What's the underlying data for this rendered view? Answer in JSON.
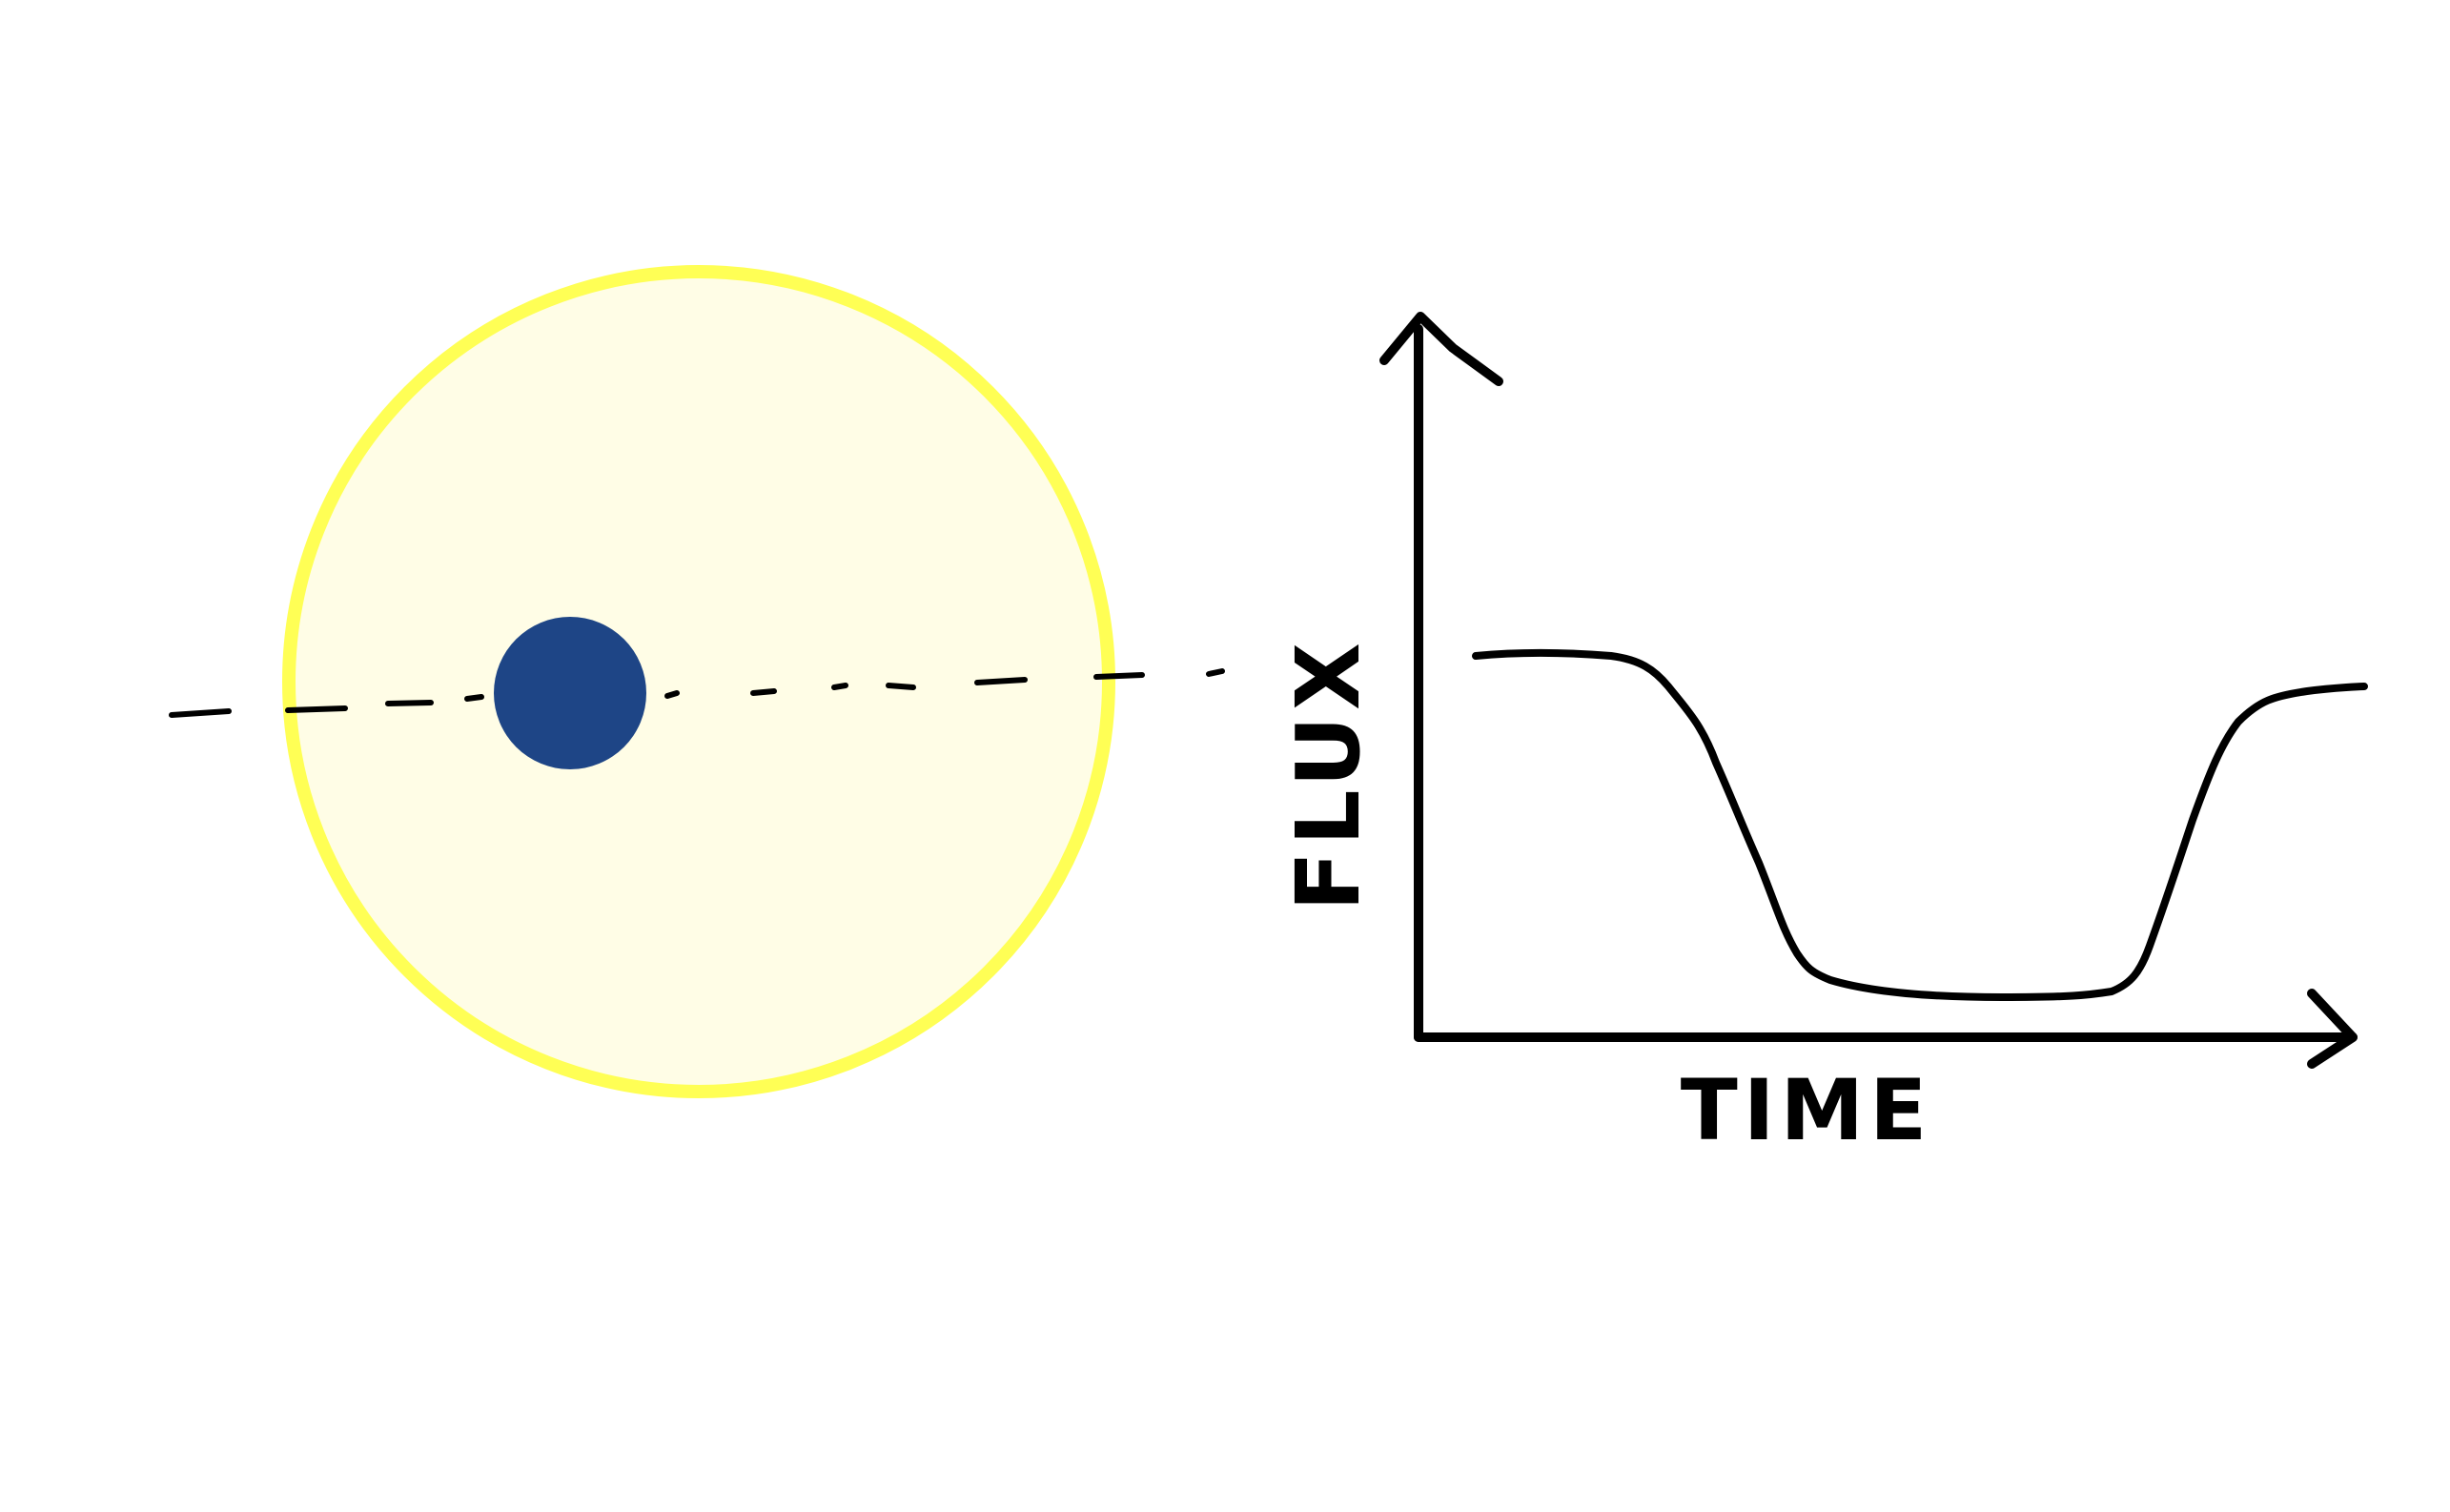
{
  "labels": {
    "y_axis": "FLUX",
    "x_axis": "TIME"
  },
  "colors": {
    "star_fill": "#fffde6",
    "star_outline": "#ffff55",
    "planet": "#1e4586",
    "ink": "#000000"
  }
}
